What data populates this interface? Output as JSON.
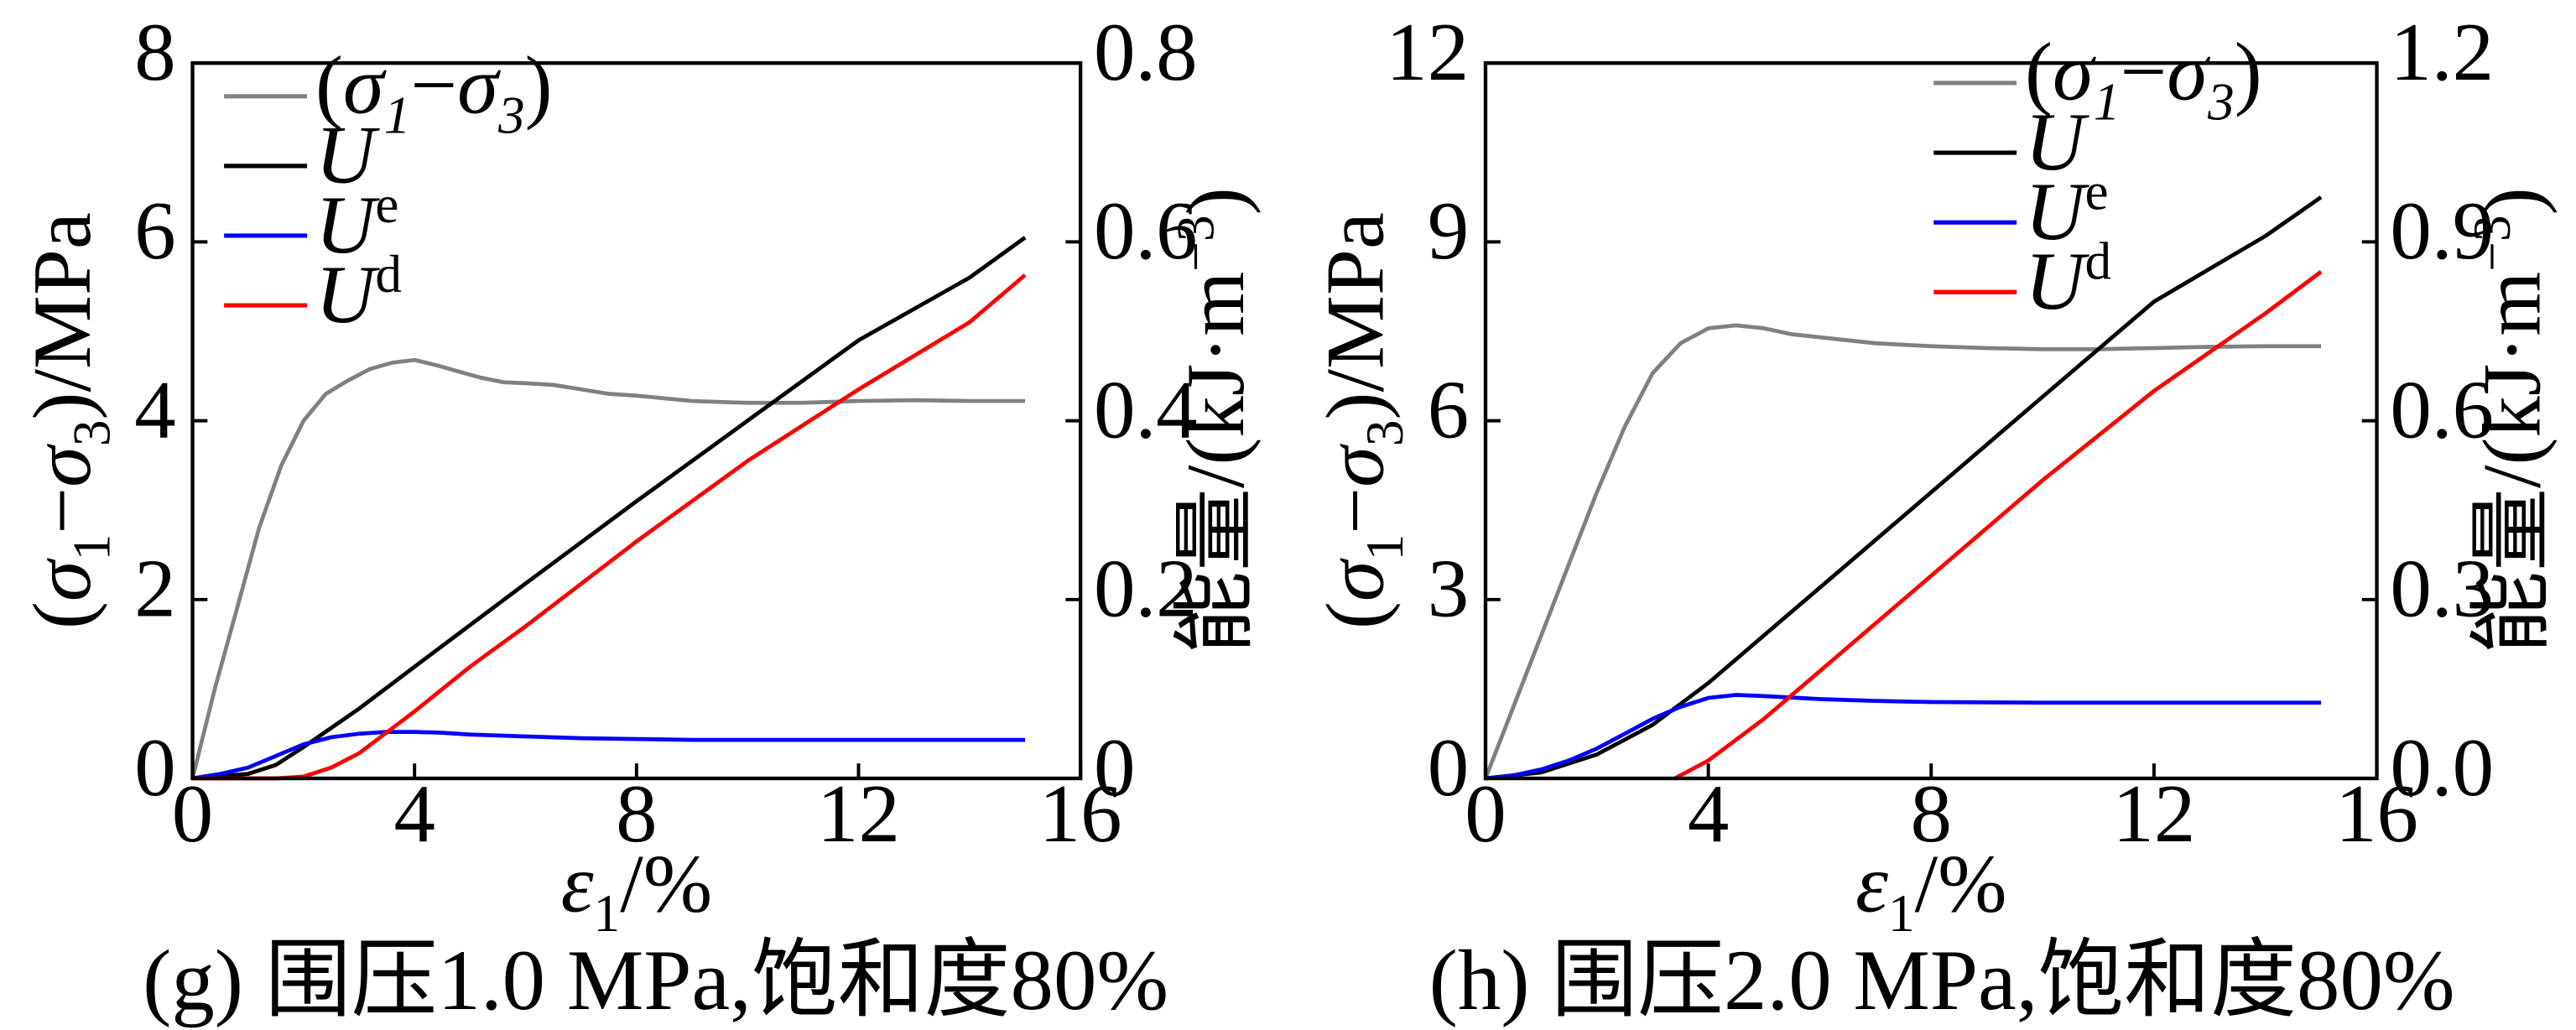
{
  "chart_data": [
    {
      "type": "line",
      "caption": "(g) 围压1.0 MPa,饱和度80%",
      "xlabel": "ε1/%",
      "ylabel_left": "(σ1−σ3)/MPa",
      "ylabel_right": "能量/(kJ·m−3)",
      "xlim": [
        0,
        16
      ],
      "ylim_left": [
        0,
        8
      ],
      "ylim_right": [
        0,
        0.8
      ],
      "xticks": [
        "0",
        "4",
        "8",
        "12",
        "16"
      ],
      "yticks_left": [
        "0",
        "2",
        "4",
        "6",
        "8"
      ],
      "yticks_right": [
        "0",
        "0.2",
        "0.4",
        "0.6",
        "0.8"
      ],
      "legend_position": "top-left",
      "series": [
        {
          "name": "(σ1−σ3)",
          "axis": "left",
          "color": "#808080",
          "x": [
            0,
            0.4,
            0.8,
            1.2,
            1.6,
            2.0,
            2.4,
            2.8,
            3.2,
            3.6,
            4.0,
            4.4,
            4.8,
            5.2,
            5.6,
            6.0,
            6.5,
            7.0,
            7.5,
            8.0,
            8.5,
            9.0,
            9.5,
            10.0,
            11.0,
            12.0,
            13.0,
            14.0,
            15.0
          ],
          "y": [
            0,
            1.0,
            1.9,
            2.8,
            3.5,
            4.0,
            4.3,
            4.45,
            4.58,
            4.65,
            4.68,
            4.62,
            4.55,
            4.48,
            4.43,
            4.42,
            4.4,
            4.35,
            4.3,
            4.28,
            4.25,
            4.22,
            4.21,
            4.2,
            4.2,
            4.22,
            4.23,
            4.22,
            4.22
          ]
        },
        {
          "name": "U",
          "axis": "right",
          "color": "#000000",
          "x": [
            0,
            1.0,
            1.5,
            2.0,
            3.0,
            4.0,
            6.0,
            8.0,
            10.0,
            12.0,
            14.0,
            15.0
          ],
          "y": [
            0,
            0.005,
            0.015,
            0.035,
            0.078,
            0.125,
            0.218,
            0.31,
            0.4,
            0.49,
            0.56,
            0.605
          ]
        },
        {
          "name": "Ue",
          "axis": "right",
          "color": "#0000ff",
          "x": [
            0,
            0.5,
            1.0,
            1.5,
            2.0,
            2.5,
            3.0,
            3.5,
            4.0,
            4.5,
            5.0,
            6.0,
            7.0,
            8.0,
            9.0,
            10.0,
            12.0,
            14.0,
            15.0
          ],
          "y": [
            0,
            0.005,
            0.012,
            0.025,
            0.038,
            0.046,
            0.05,
            0.052,
            0.052,
            0.051,
            0.049,
            0.047,
            0.045,
            0.044,
            0.043,
            0.043,
            0.043,
            0.043,
            0.043
          ]
        },
        {
          "name": "Ud",
          "axis": "right",
          "color": "#ff0000",
          "x": [
            0,
            1.5,
            2.0,
            2.5,
            3.0,
            4.0,
            5.0,
            6.0,
            8.0,
            10.0,
            12.0,
            14.0,
            15.0
          ],
          "y": [
            0,
            0,
            0.002,
            0.012,
            0.028,
            0.075,
            0.125,
            0.17,
            0.265,
            0.355,
            0.435,
            0.51,
            0.563
          ]
        }
      ],
      "legend": [
        {
          "label": "(σ1−σ3)",
          "color": "#808080"
        },
        {
          "label": "U",
          "color": "#000000"
        },
        {
          "label": "Ue",
          "color": "#0000ff"
        },
        {
          "label": "Ud",
          "color": "#ff0000"
        }
      ]
    },
    {
      "type": "line",
      "caption": "(h) 围压2.0 MPa,饱和度80%",
      "xlabel": "ε1/%",
      "ylabel_left": "(σ1−σ3)/MPa",
      "ylabel_right": "能量/(kJ·m−3)",
      "xlim": [
        0,
        16
      ],
      "ylim_left": [
        0,
        12
      ],
      "ylim_right": [
        0,
        1.2
      ],
      "xticks": [
        "0",
        "4",
        "8",
        "12",
        "16"
      ],
      "yticks_left": [
        "0",
        "3",
        "6",
        "9",
        "12"
      ],
      "yticks_right": [
        "0.0",
        "0.3",
        "0.6",
        "0.9",
        "1.2"
      ],
      "legend_position": "top-right",
      "series": [
        {
          "name": "(σ1−σ3)",
          "axis": "left",
          "color": "#808080",
          "x": [
            0,
            0.5,
            1.0,
            1.5,
            2.0,
            2.5,
            3.0,
            3.5,
            4.0,
            4.5,
            5.0,
            5.5,
            6.0,
            7.0,
            8.0,
            9.0,
            10.0,
            11.0,
            12.0,
            13.0,
            14.0,
            15.0
          ],
          "y": [
            0,
            1.2,
            2.4,
            3.6,
            4.8,
            5.9,
            6.8,
            7.3,
            7.55,
            7.6,
            7.55,
            7.45,
            7.4,
            7.3,
            7.25,
            7.22,
            7.2,
            7.2,
            7.22,
            7.24,
            7.25,
            7.25
          ]
        },
        {
          "name": "U",
          "axis": "right",
          "color": "#000000",
          "x": [
            0,
            1.0,
            2.0,
            3.0,
            4.0,
            5.0,
            6.0,
            8.0,
            10.0,
            12.0,
            14.0,
            15.0
          ],
          "y": [
            0,
            0.01,
            0.04,
            0.09,
            0.16,
            0.24,
            0.32,
            0.48,
            0.64,
            0.8,
            0.91,
            0.975
          ]
        },
        {
          "name": "Ue",
          "axis": "right",
          "color": "#0000ff",
          "x": [
            0,
            0.5,
            1.0,
            1.5,
            2.0,
            2.5,
            3.0,
            3.5,
            4.0,
            4.5,
            5.0,
            6.0,
            7.0,
            8.0,
            10.0,
            12.0,
            14.0,
            15.0
          ],
          "y": [
            0,
            0.005,
            0.015,
            0.03,
            0.05,
            0.075,
            0.1,
            0.12,
            0.135,
            0.14,
            0.138,
            0.133,
            0.13,
            0.128,
            0.127,
            0.127,
            0.127,
            0.127
          ]
        },
        {
          "name": "Ud",
          "axis": "right",
          "color": "#ff0000",
          "x": [
            3.4,
            4.0,
            5.0,
            6.0,
            8.0,
            10.0,
            12.0,
            14.0,
            15.0
          ],
          "y": [
            0,
            0.03,
            0.1,
            0.18,
            0.34,
            0.5,
            0.65,
            0.78,
            0.85
          ]
        }
      ],
      "legend": [
        {
          "label": "(σ1−σ3)",
          "color": "#808080"
        },
        {
          "label": "U",
          "color": "#000000"
        },
        {
          "label": "Ue",
          "color": "#0000ff"
        },
        {
          "label": "Ud",
          "color": "#ff0000"
        }
      ]
    }
  ]
}
